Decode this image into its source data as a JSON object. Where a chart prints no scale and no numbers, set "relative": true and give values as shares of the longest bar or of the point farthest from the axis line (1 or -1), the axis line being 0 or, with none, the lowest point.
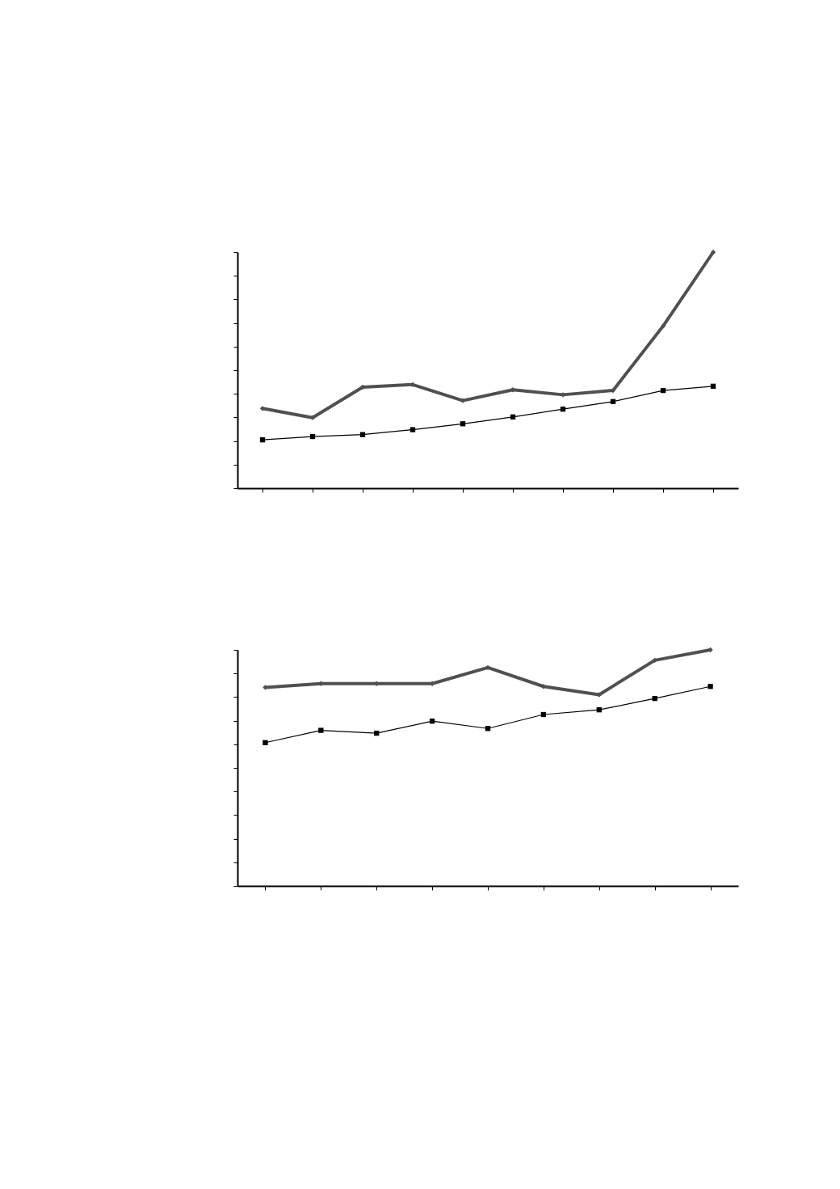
{
  "chart_data": [
    {
      "type": "line",
      "relative": true,
      "categories": [
        null,
        null,
        null,
        null,
        null,
        null,
        null,
        null,
        null,
        null
      ],
      "tick_labels": false,
      "grid": false,
      "series": [
        {
          "color": "#505050",
          "marker": "diamond",
          "values": [
            0.338,
            0.299,
            0.428,
            0.439,
            0.371,
            0.417,
            0.396,
            0.414,
            0.687,
            1
          ]
        },
        {
          "color": "#000000",
          "marker": "square",
          "values": [
            0.205,
            0.219,
            0.227,
            0.248,
            0.273,
            0.302,
            0.335,
            0.367,
            0.414,
            0.432
          ]
        }
      ]
    },
    {
      "type": "line",
      "relative": true,
      "categories": [
        null,
        null,
        null,
        null,
        null,
        null,
        null,
        null,
        null
      ],
      "tick_labels": false,
      "grid": false,
      "series": [
        {
          "color": "#505050",
          "marker": "diamond",
          "values": [
            0.841,
            0.857,
            0.857,
            0.857,
            0.925,
            0.845,
            0.81,
            0.956,
            1
          ]
        },
        {
          "color": "#000000",
          "marker": "square",
          "values": [
            0.607,
            0.659,
            0.647,
            0.698,
            0.667,
            0.726,
            0.746,
            0.794,
            0.845
          ]
        }
      ]
    }
  ]
}
